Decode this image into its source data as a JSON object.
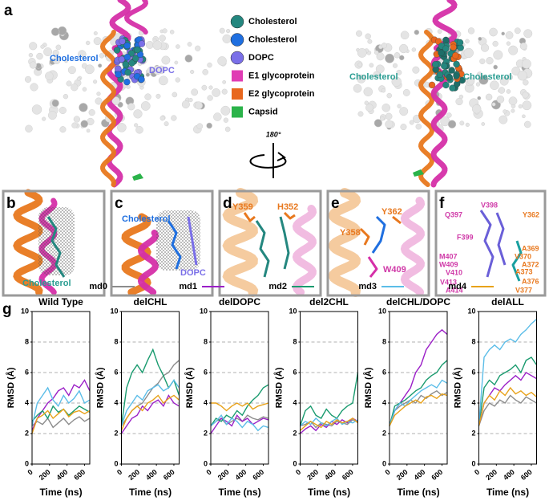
{
  "panel_a": {
    "label": "a",
    "left_labels": [
      "Cholesterol",
      "DOPC"
    ],
    "right_labels": [
      "Cholesterol",
      "Cholesterol"
    ],
    "rotation": "180°"
  },
  "legend": {
    "items": [
      {
        "name": "Cholesterol",
        "color": "#24877f"
      },
      {
        "name": "Cholesterol",
        "color": "#1f6fe0"
      },
      {
        "name": "DOPC",
        "color": "#7a6fe8"
      },
      {
        "name": "E1 glycoprotein",
        "color": "#e03cb4"
      },
      {
        "name": "E2 glycoprotein",
        "color": "#e8671e"
      },
      {
        "name": "Capsid",
        "color": "#2bb34a"
      }
    ]
  },
  "panel_b": {
    "label": "b",
    "labels": [
      "Cholesterol"
    ]
  },
  "panel_c": {
    "label": "c",
    "labels": [
      "Cholesterol",
      "DOPC"
    ]
  },
  "panel_d": {
    "label": "d",
    "labels": [
      "Y359",
      "H352"
    ]
  },
  "panel_e": {
    "label": "e",
    "labels": [
      "Y362",
      "Y358",
      "W409"
    ]
  },
  "panel_f": {
    "label": "f",
    "labels": [
      "V398",
      "Q397",
      "Y362",
      "F399",
      "M407",
      "A369",
      "W409",
      "V370",
      "V410",
      "A372",
      "A373",
      "V413",
      "A376",
      "A414",
      "V377"
    ]
  },
  "panel_g": {
    "label": "g",
    "series_legend": [
      {
        "name": "md0",
        "color": "#8c8c8c"
      },
      {
        "name": "md1",
        "color": "#9b1fc7"
      },
      {
        "name": "md2",
        "color": "#1a9b6f"
      },
      {
        "name": "md3",
        "color": "#5bbde8"
      },
      {
        "name": "md4",
        "color": "#e8a21a"
      }
    ]
  },
  "chart_data": [
    {
      "type": "line",
      "title": "Wild Type",
      "x_label": "Time (ns)",
      "y_label": "RMSD (Å)",
      "xlim": [
        0,
        660
      ],
      "xticks": [
        0,
        200,
        400,
        600
      ],
      "ylim": [
        0,
        10
      ],
      "yticks": [
        0,
        2,
        4,
        6,
        8,
        10
      ],
      "grid": true,
      "x": [
        0,
        60,
        120,
        180,
        240,
        300,
        360,
        420,
        480,
        540,
        600,
        660
      ],
      "series": [
        {
          "values": [
            2.5,
            2.8,
            2.6,
            3.0,
            2.4,
            2.7,
            3.0,
            2.6,
            2.9,
            3.1,
            2.8,
            3.0
          ]
        },
        {
          "values": [
            2.2,
            3.0,
            3.5,
            4.0,
            4.3,
            4.8,
            5.0,
            4.5,
            5.2,
            5.0,
            5.5,
            4.8
          ]
        },
        {
          "values": [
            2.8,
            3.2,
            3.5,
            3.0,
            3.8,
            3.4,
            3.6,
            3.2,
            3.5,
            3.8,
            3.6,
            3.4
          ]
        },
        {
          "values": [
            2.5,
            4.0,
            4.5,
            5.0,
            4.2,
            3.8,
            4.5,
            4.0,
            4.3,
            4.8,
            4.0,
            4.2
          ]
        },
        {
          "values": [
            2.0,
            3.0,
            3.2,
            3.5,
            3.0,
            3.3,
            3.6,
            3.1,
            3.4,
            3.5,
            3.3,
            3.5
          ]
        }
      ]
    },
    {
      "type": "line",
      "title": "delCHL",
      "x_label": "Time (ns)",
      "y_label": "RMSD (Å)",
      "xlim": [
        0,
        660
      ],
      "xticks": [
        0,
        200,
        400,
        600
      ],
      "ylim": [
        0,
        10
      ],
      "yticks": [
        0,
        2,
        4,
        6,
        8,
        10
      ],
      "grid": true,
      "x": [
        0,
        60,
        120,
        180,
        240,
        300,
        360,
        420,
        480,
        540,
        600,
        660
      ],
      "series": [
        {
          "values": [
            2.5,
            3.0,
            3.5,
            3.8,
            4.0,
            4.5,
            5.0,
            5.3,
            5.8,
            6.0,
            6.5,
            6.8
          ]
        },
        {
          "values": [
            2.0,
            2.5,
            3.0,
            3.2,
            3.8,
            3.5,
            4.0,
            4.2,
            3.8,
            4.5,
            4.0,
            3.8
          ]
        },
        {
          "values": [
            2.5,
            5.0,
            6.0,
            6.5,
            6.0,
            6.8,
            7.5,
            6.5,
            5.8,
            5.0,
            5.5,
            4.5
          ]
        },
        {
          "values": [
            2.5,
            3.5,
            4.0,
            4.5,
            4.2,
            4.8,
            5.0,
            5.2,
            4.8,
            5.0,
            5.5,
            5.0
          ]
        },
        {
          "values": [
            2.2,
            3.0,
            3.5,
            3.8,
            3.5,
            4.0,
            4.2,
            4.5,
            4.0,
            4.3,
            4.5,
            4.2
          ]
        }
      ]
    },
    {
      "type": "line",
      "title": "delDOPC",
      "x_label": "Time (ns)",
      "y_label": "RMSD (Å)",
      "xlim": [
        0,
        660
      ],
      "xticks": [
        0,
        200,
        400,
        600
      ],
      "ylim": [
        0,
        10
      ],
      "yticks": [
        0,
        2,
        4,
        6,
        8,
        10
      ],
      "grid": true,
      "x": [
        0,
        60,
        120,
        180,
        240,
        300,
        360,
        420,
        480,
        540,
        600,
        660
      ],
      "series": [
        {
          "values": [
            2.5,
            2.8,
            3.0,
            2.6,
            2.8,
            3.0,
            2.8,
            3.2,
            3.0,
            2.9,
            3.1,
            3.0
          ]
        },
        {
          "values": [
            2.0,
            2.5,
            3.0,
            2.8,
            2.5,
            3.2,
            2.8,
            3.0,
            2.6,
            2.8,
            3.0,
            2.9
          ]
        },
        {
          "values": [
            2.5,
            3.0,
            2.8,
            3.2,
            3.0,
            3.5,
            3.2,
            3.8,
            4.2,
            4.5,
            5.0,
            5.2
          ]
        },
        {
          "values": [
            2.5,
            2.8,
            3.2,
            2.6,
            3.0,
            2.8,
            2.4,
            2.8,
            2.6,
            2.2,
            2.5,
            2.4
          ]
        },
        {
          "values": [
            4.0,
            4.0,
            3.8,
            3.5,
            3.8,
            4.0,
            3.8,
            4.0,
            3.6,
            3.8,
            3.9,
            4.0
          ]
        }
      ]
    },
    {
      "type": "line",
      "title": "del2CHL",
      "x_label": "Time (ns)",
      "y_label": "RMSD (Å)",
      "xlim": [
        0,
        660
      ],
      "xticks": [
        0,
        200,
        400,
        600
      ],
      "ylim": [
        0,
        10
      ],
      "yticks": [
        0,
        2,
        4,
        6,
        8,
        10
      ],
      "grid": true,
      "x": [
        0,
        60,
        120,
        180,
        240,
        300,
        360,
        420,
        480,
        540,
        600,
        660
      ],
      "series": [
        {
          "values": [
            2.5,
            2.6,
            2.8,
            2.4,
            2.7,
            2.6,
            2.5,
            2.8,
            2.7,
            2.6,
            2.9,
            2.8
          ]
        },
        {
          "values": [
            2.0,
            2.3,
            2.5,
            2.2,
            2.6,
            2.4,
            2.8,
            2.6,
            2.9,
            2.7,
            3.0,
            2.8
          ]
        },
        {
          "values": [
            2.5,
            3.5,
            3.8,
            3.2,
            3.0,
            3.6,
            3.2,
            3.0,
            3.5,
            3.8,
            4.0,
            6.0
          ]
        },
        {
          "values": [
            2.5,
            2.8,
            2.6,
            3.0,
            2.7,
            2.5,
            2.8,
            3.0,
            2.6,
            2.8,
            2.7,
            2.9
          ]
        },
        {
          "values": [
            2.2,
            2.5,
            2.8,
            2.6,
            2.4,
            2.8,
            2.6,
            2.9,
            2.7,
            2.8,
            3.0,
            2.7
          ]
        }
      ]
    },
    {
      "type": "line",
      "title": "delCHL/DOPC",
      "x_label": "Time (ns)",
      "y_label": "RMSD (Å)",
      "xlim": [
        0,
        660
      ],
      "xticks": [
        0,
        200,
        400,
        600
      ],
      "ylim": [
        0,
        10
      ],
      "yticks": [
        0,
        2,
        4,
        6,
        8,
        10
      ],
      "grid": true,
      "x": [
        0,
        60,
        120,
        180,
        240,
        300,
        360,
        420,
        480,
        540,
        600,
        660
      ],
      "series": [
        {
          "values": [
            2.5,
            3.5,
            3.8,
            4.0,
            4.2,
            4.0,
            4.5,
            4.3,
            4.6,
            4.8,
            4.5,
            4.7
          ]
        },
        {
          "values": [
            2.5,
            3.5,
            4.0,
            4.5,
            5.0,
            6.0,
            6.5,
            7.5,
            8.0,
            8.5,
            8.8,
            8.5
          ]
        },
        {
          "values": [
            2.5,
            3.8,
            4.0,
            4.2,
            4.5,
            4.8,
            5.0,
            5.5,
            5.8,
            6.0,
            6.5,
            6.8
          ]
        },
        {
          "values": [
            2.5,
            3.5,
            4.0,
            3.8,
            4.2,
            4.5,
            4.8,
            5.0,
            5.2,
            5.0,
            5.5,
            5.3
          ]
        },
        {
          "values": [
            2.5,
            3.2,
            3.5,
            3.8,
            4.0,
            4.2,
            4.0,
            4.4,
            4.5,
            4.3,
            4.6,
            4.5
          ]
        }
      ]
    },
    {
      "type": "line",
      "title": "delALL",
      "x_label": "Time (ns)",
      "y_label": "RMSD (Å)",
      "xlim": [
        0,
        660
      ],
      "xticks": [
        0,
        200,
        400,
        600
      ],
      "ylim": [
        0,
        10
      ],
      "yticks": [
        0,
        2,
        4,
        6,
        8,
        10
      ],
      "grid": true,
      "x": [
        0,
        60,
        120,
        180,
        240,
        300,
        360,
        420,
        480,
        540,
        600,
        660
      ],
      "series": [
        {
          "values": [
            2.5,
            3.5,
            4.0,
            3.8,
            4.2,
            4.0,
            4.5,
            4.2,
            4.0,
            4.4,
            4.2,
            4.0
          ]
        },
        {
          "values": [
            2.5,
            4.0,
            4.5,
            5.0,
            4.8,
            5.2,
            5.5,
            5.8,
            5.5,
            6.0,
            5.8,
            5.6
          ]
        },
        {
          "values": [
            2.5,
            5.0,
            5.5,
            5.2,
            5.8,
            6.0,
            6.2,
            6.5,
            6.0,
            6.8,
            7.0,
            6.5
          ]
        },
        {
          "values": [
            2.5,
            7.0,
            7.5,
            7.8,
            7.5,
            8.0,
            8.2,
            8.0,
            8.5,
            8.8,
            9.2,
            9.5
          ]
        },
        {
          "values": [
            2.5,
            4.0,
            4.5,
            4.2,
            4.8,
            4.5,
            5.0,
            4.6,
            4.8,
            4.5,
            4.7,
            4.4
          ]
        }
      ]
    }
  ]
}
